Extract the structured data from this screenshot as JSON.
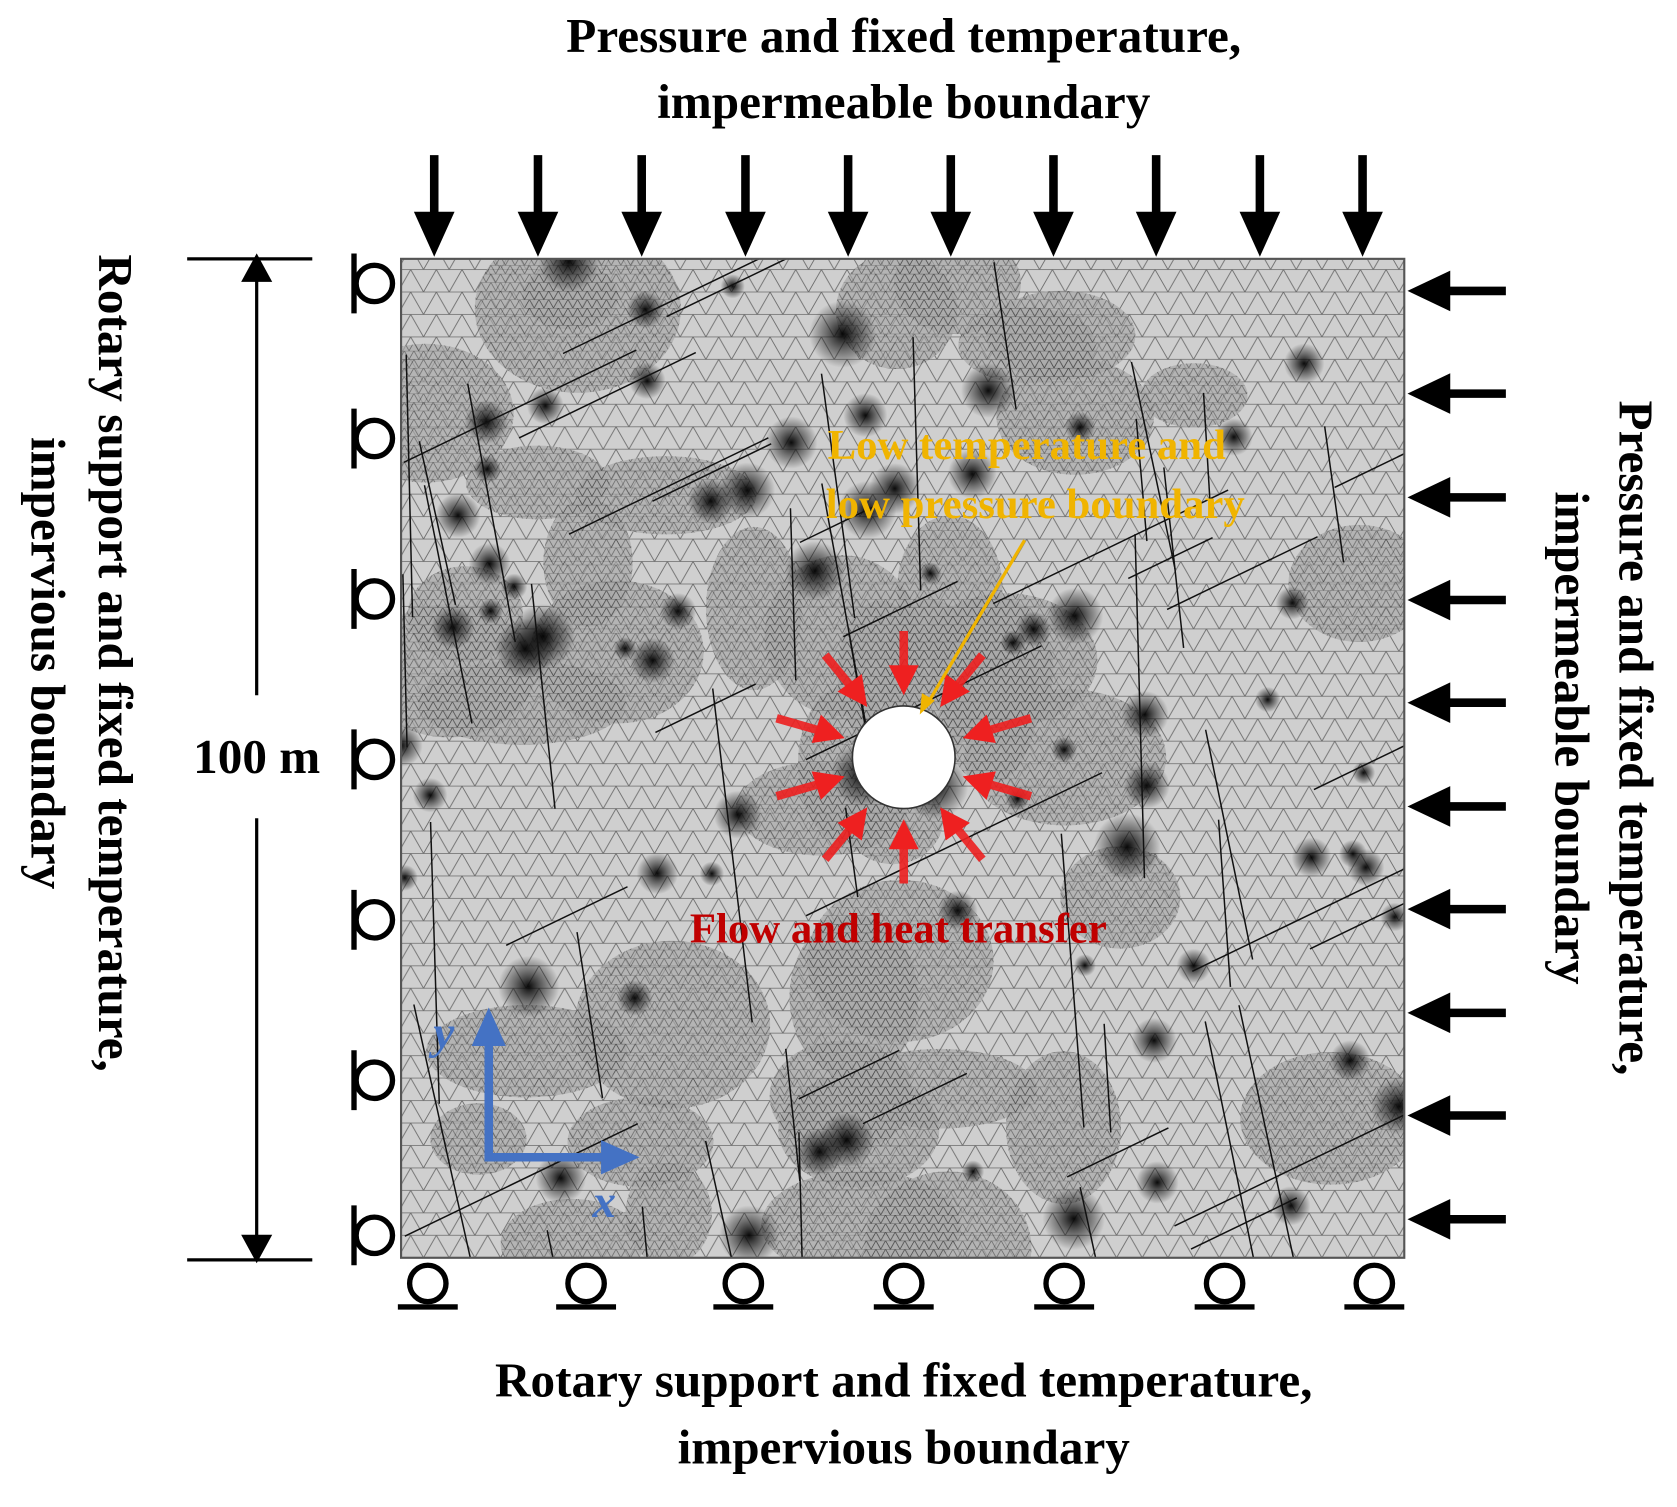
{
  "top_boundary": {
    "lines": [
      "Pressure and fixed temperature,",
      "impermeable boundary"
    ]
  },
  "right_boundary": {
    "lines": [
      "Pressure and fixed temperature,",
      "impermeable boundary"
    ]
  },
  "left_boundary": {
    "lines": [
      "Rotary support and fixed temperature,",
      "impervious boundary"
    ]
  },
  "bottom_boundary": {
    "lines": [
      "Rotary support and fixed temperature,",
      "impervious boundary"
    ]
  },
  "dimension": "100 m",
  "hole_annotation": {
    "lines": [
      "Low temperature and",
      "low pressure boundary"
    ]
  },
  "flow_annotation": "Flow and heat transfer",
  "axes": {
    "x": "x",
    "y": "y"
  }
}
